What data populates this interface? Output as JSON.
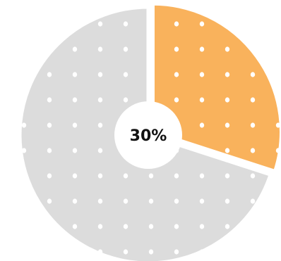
{
  "chart_data": {
    "type": "pie",
    "center_label": "30%",
    "slices": [
      {
        "value": 30,
        "color": "#F9B25C"
      },
      {
        "value": 70,
        "color": "#DCDCDC"
      }
    ],
    "pattern": "white-dots",
    "donut_hole_color": "#FFFFFF"
  }
}
